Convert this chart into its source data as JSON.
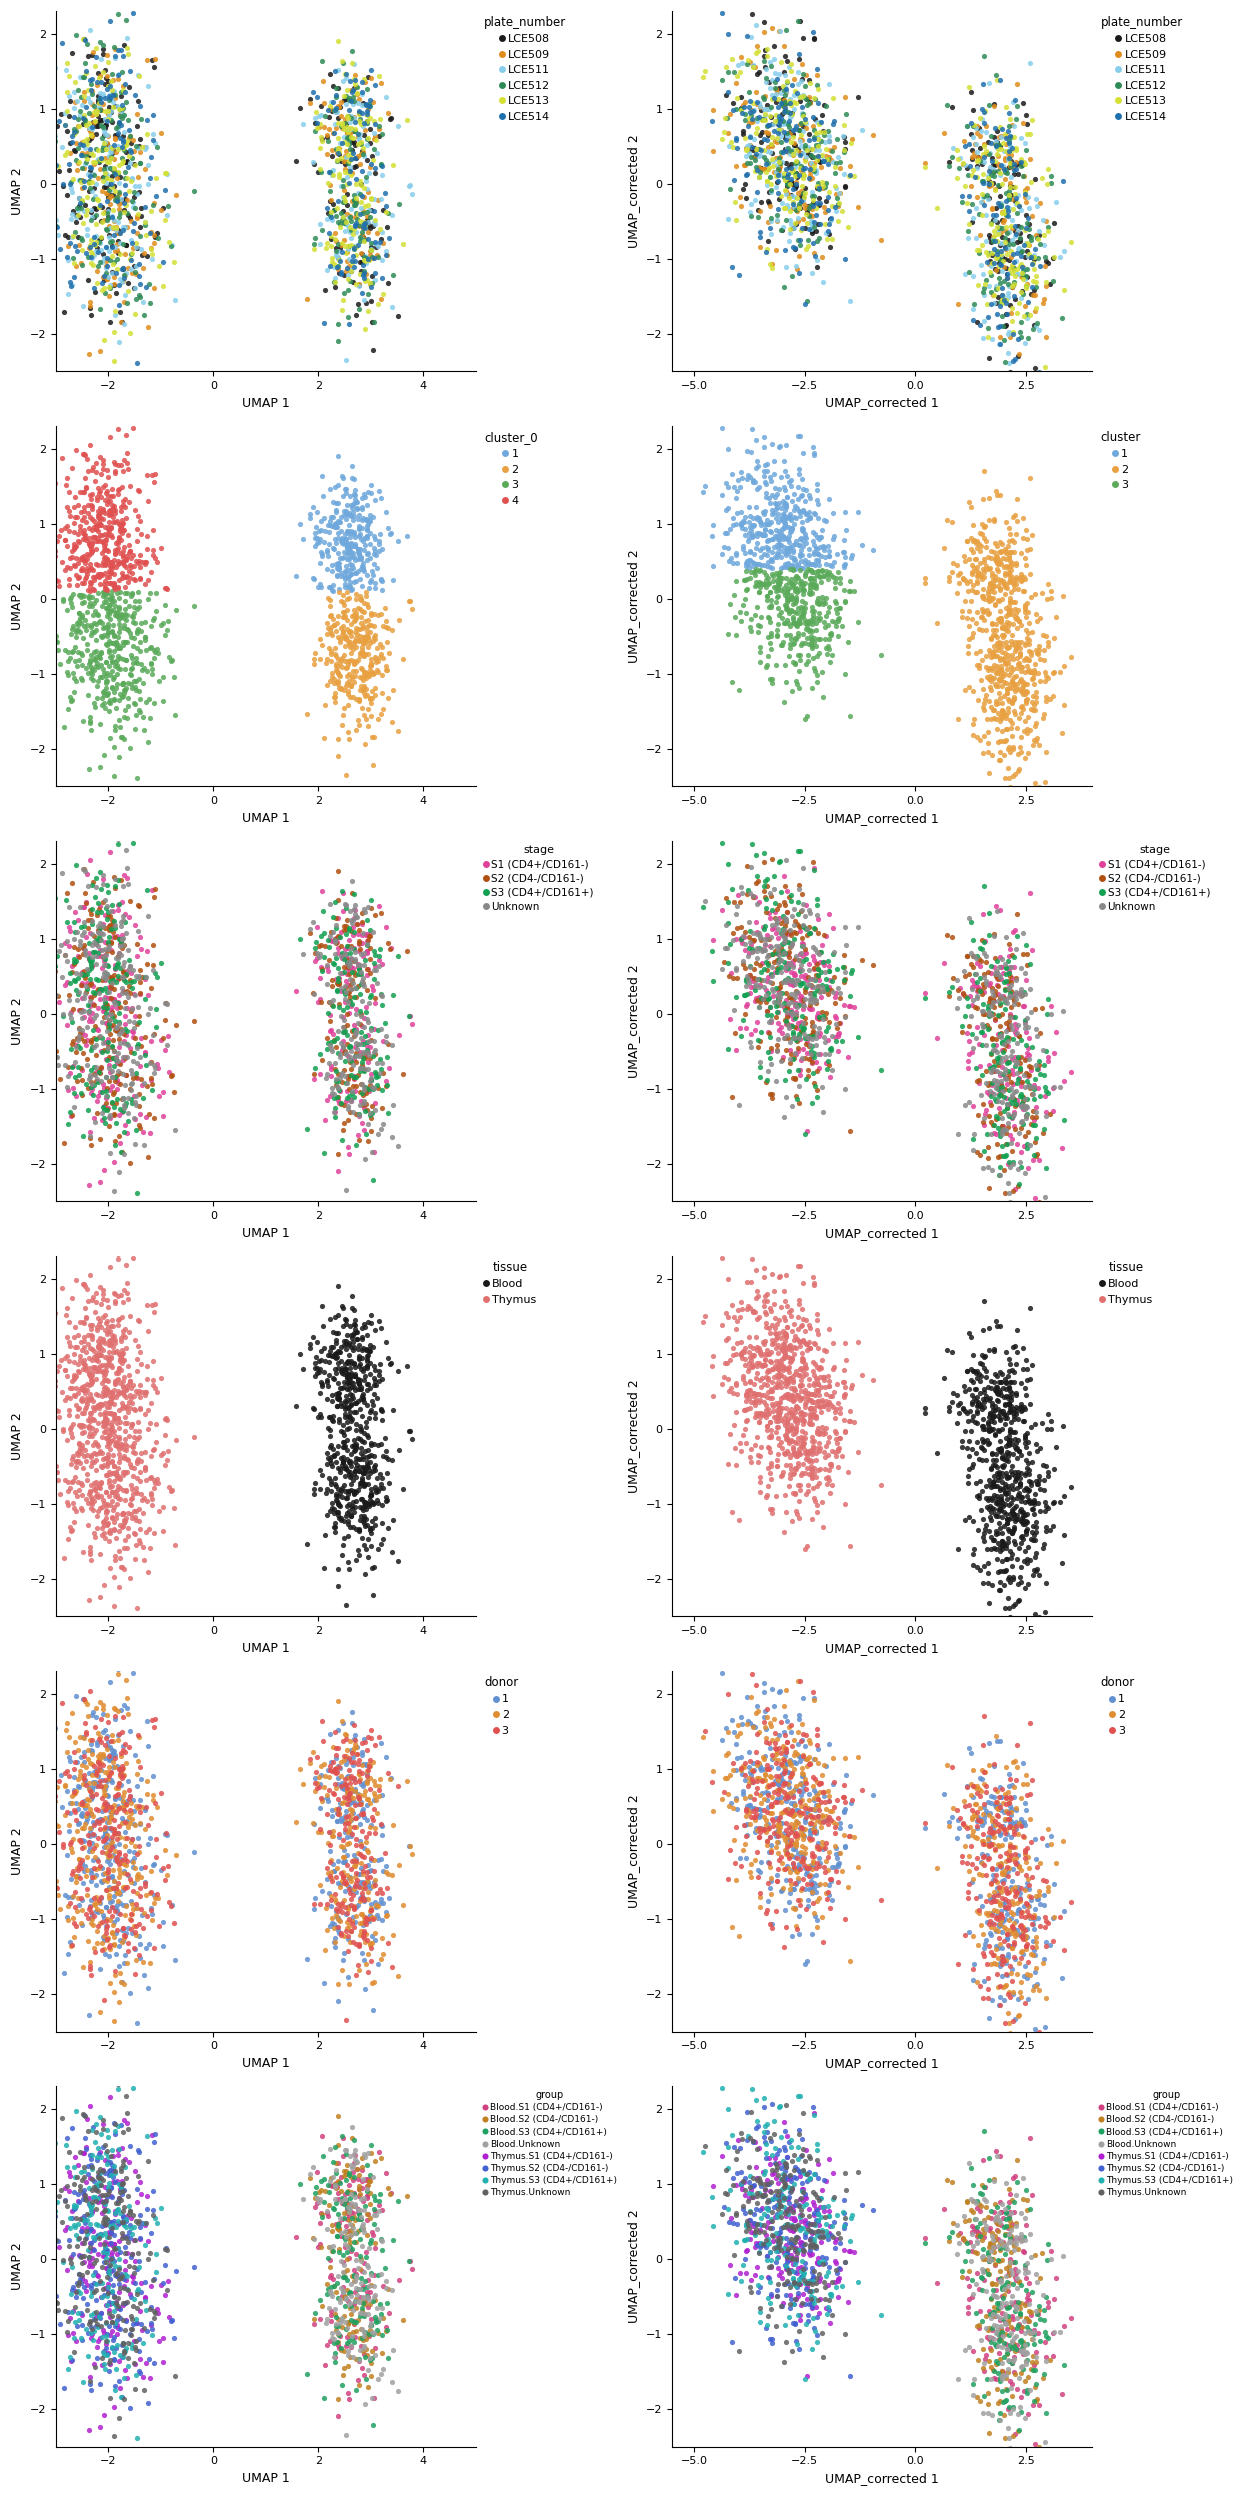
{
  "figure_size": [
    12.48,
    24.96
  ],
  "dpi": 100,
  "nrows": 6,
  "ncols": 2,
  "background_color": "white",
  "plate_colors": {
    "LCE508": "#1a1a1a",
    "LCE509": "#e08c1a",
    "LCE511": "#87ceeb",
    "LCE512": "#2e8b57",
    "LCE513": "#d4e034",
    "LCE514": "#1e6fad"
  },
  "cluster0_colors": {
    "1": "#6fa8dc",
    "2": "#e8a040",
    "3": "#5aaa5a",
    "4": "#e05050"
  },
  "cluster_corrected_colors": {
    "1": "#6fa8dc",
    "2": "#e8a040",
    "3": "#5aaa5a"
  },
  "stage_colors": {
    "S1 (CD4+/CD161-)": "#e0409a",
    "S2 (CD4-/CD161-)": "#b05010",
    "S3 (CD4+/CD161+)": "#10a050",
    "Unknown": "#888888"
  },
  "tissue_colors": {
    "Blood": "#1a1a1a",
    "Thymus": "#e07070"
  },
  "donor_colors": {
    "1": "#6090d0",
    "2": "#e08c30",
    "3": "#e05050"
  },
  "group_colors": {
    "Blood.S1 (CD4+/CD161-)": "#d04080",
    "Blood.S2 (CD4-/CD161-)": "#c08020",
    "Blood.S3 (CD4+/CD161+)": "#20a060",
    "Blood.Unknown": "#a0a0a0",
    "Thymus.S1 (CD4+/CD161-)": "#b020d0",
    "Thymus.S2 (CD4-/CD161-)": "#4060d0",
    "Thymus.S3 (CD4+/CD161+)": "#20b0b0",
    "Thymus.Unknown": "#606060"
  },
  "left_xlim": [
    -3.0,
    5.0
  ],
  "left_ylim": [
    -2.5,
    2.3
  ],
  "right_xlim": [
    -5.5,
    4.0
  ],
  "right_ylim": [
    -2.5,
    2.3
  ],
  "left_xticks": [
    -2,
    0,
    2,
    4
  ],
  "left_yticks": [
    -2,
    -1,
    0,
    1,
    2
  ],
  "right_xticks": [
    -5.0,
    -2.5,
    0.0,
    2.5
  ],
  "right_yticks": [
    -2,
    -1,
    0,
    1,
    2
  ],
  "left_xlabel": "UMAP 1",
  "left_ylabel": "UMAP 2",
  "right_xlabel": "UMAP_corrected 1",
  "right_ylabel": "UMAP_corrected 2",
  "dot_size": 14,
  "dot_alpha": 0.85,
  "legend_fontsize": 8,
  "axis_fontsize": 9,
  "tick_fontsize": 8
}
